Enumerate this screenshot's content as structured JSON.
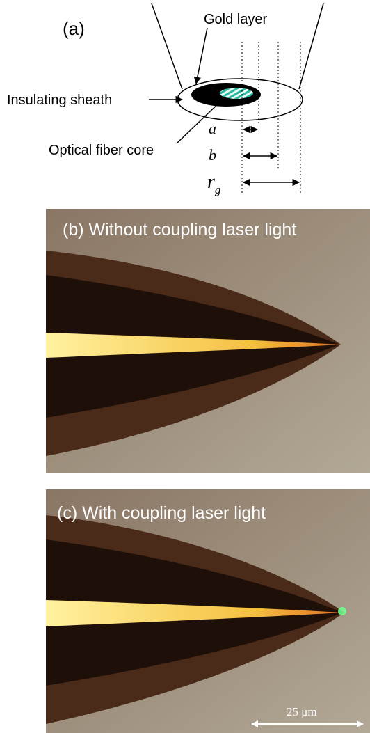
{
  "panel_a": {
    "label": "(a)",
    "gold_layer": "Gold layer",
    "insulating_sheath": "Insulating sheath",
    "optical_fiber_core": "Optical fiber core",
    "dim_a": "a",
    "dim_b": "b",
    "dim_rg": "r",
    "dim_rg_sub": "g"
  },
  "panel_b": {
    "label": "(b) Without coupling laser light"
  },
  "panel_c": {
    "label": "(c) With coupling laser light",
    "scale_bar": "25 μm"
  }
}
